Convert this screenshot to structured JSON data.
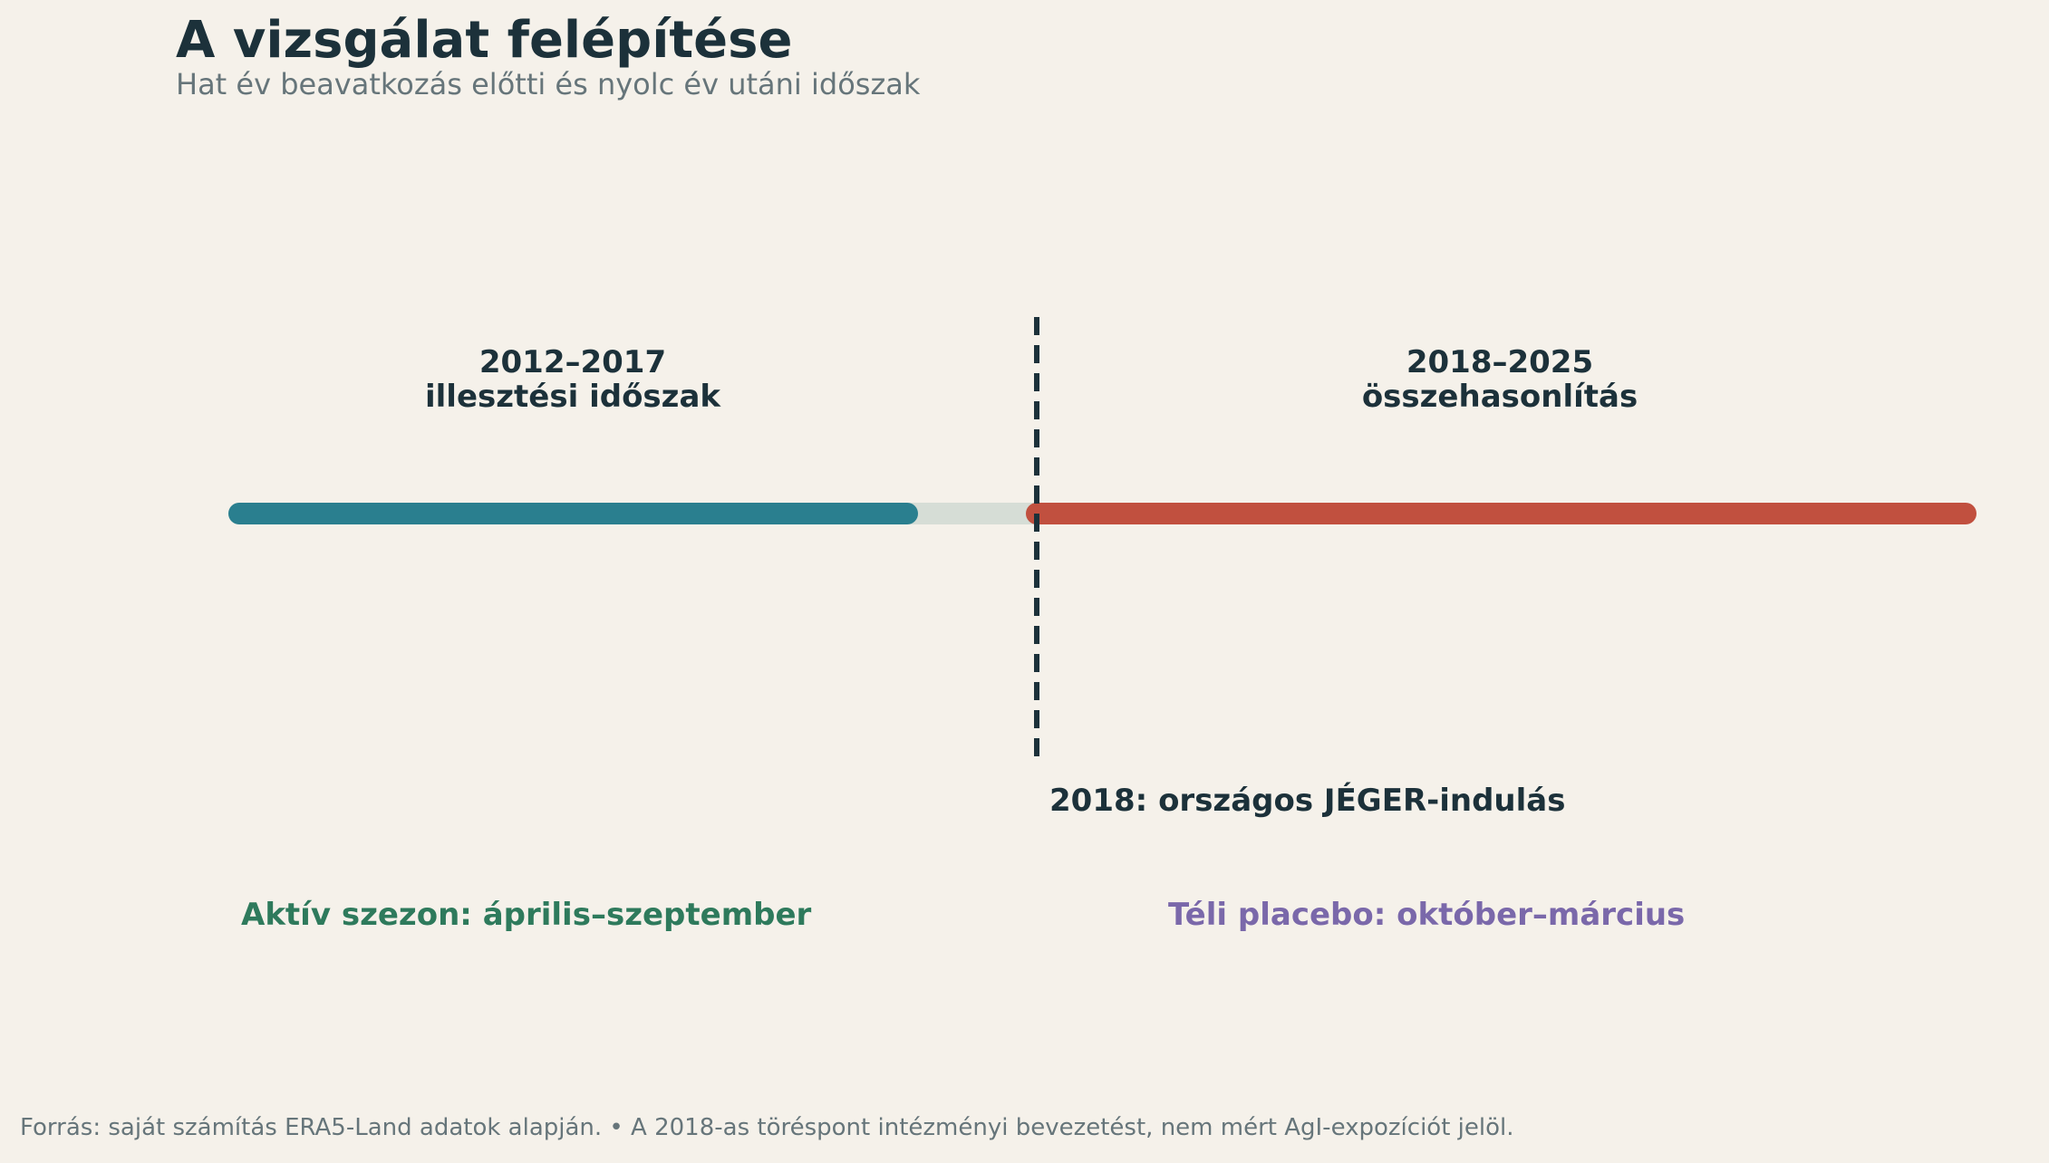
{
  "header": {
    "title": "A vizsgálat felépítése",
    "subtitle": "Hat év beavatkozás előtti és nyolc év utáni időszak"
  },
  "timeline": {
    "start_year": 2012,
    "end_year": 2025,
    "break_year": 2018,
    "periods": [
      {
        "id": "fit",
        "years": "2012–2017",
        "label": "illesztési időszak",
        "color": "#2a7f8f"
      },
      {
        "id": "comparison",
        "years": "2018–2025",
        "label": "összehasonlítás",
        "color": "#c1503f"
      }
    ],
    "gap_color": "#d6ddd6",
    "break_label": "2018: országos JÉGER-indulás",
    "break_line_color": "#1c313a"
  },
  "seasons": {
    "active": {
      "label": "Aktív szezon: április–szeptember",
      "color": "#2e7a5c"
    },
    "placebo": {
      "label": "Téli placebo: október–március",
      "color": "#7a68aa"
    }
  },
  "footer": {
    "source": "Forrás: saját számítás ERA5-Land adatok alapján.  •  A 2018-as töréspont intézményi bevezetést, nem mért AgI-expozíciót jelöl."
  }
}
